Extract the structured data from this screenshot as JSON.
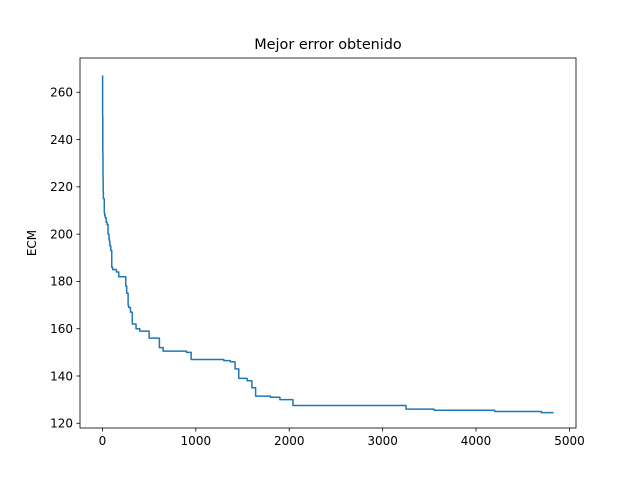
{
  "chart_data": {
    "type": "line",
    "title": "Mejor error obtenido",
    "xlabel": "",
    "ylabel": "ECM",
    "xlim": [
      -240,
      5070
    ],
    "ylim": [
      118.0,
      274.5
    ],
    "xticks": [
      0,
      1000,
      2000,
      3000,
      4000,
      5000
    ],
    "yticks": [
      120,
      140,
      160,
      180,
      200,
      220,
      240,
      260
    ],
    "xtick_labels": [
      "0",
      "1000",
      "2000",
      "3000",
      "4000",
      "5000"
    ],
    "ytick_labels": [
      "120",
      "140",
      "160",
      "180",
      "200",
      "220",
      "240",
      "260"
    ],
    "grid": false,
    "line_color": "#1f77b4",
    "series": [
      {
        "step": true,
        "x": [
          0,
          2,
          4,
          6,
          8,
          10,
          15,
          20,
          25,
          30,
          40,
          50,
          60,
          70,
          75,
          80,
          90,
          100,
          110,
          150,
          175,
          250,
          260,
          275,
          280,
          300,
          320,
          360,
          400,
          500,
          610,
          650,
          900,
          950,
          1300,
          1370,
          1420,
          1460,
          1550,
          1600,
          1640,
          1800,
          1900,
          2040,
          3250,
          3550,
          4200,
          4700,
          4830
        ],
        "y": [
          267,
          250,
          234,
          224,
          218,
          215,
          215,
          209,
          208,
          207,
          205,
          204,
          200,
          198,
          197,
          195,
          193,
          186,
          185,
          184,
          182,
          178,
          175,
          170,
          169,
          167,
          162,
          160,
          159,
          156,
          152,
          150.5,
          150,
          147,
          146.5,
          146,
          143,
          139,
          138,
          135,
          131.5,
          131,
          130,
          127.5,
          126,
          125.5,
          125,
          124.5,
          124.5
        ]
      }
    ]
  }
}
